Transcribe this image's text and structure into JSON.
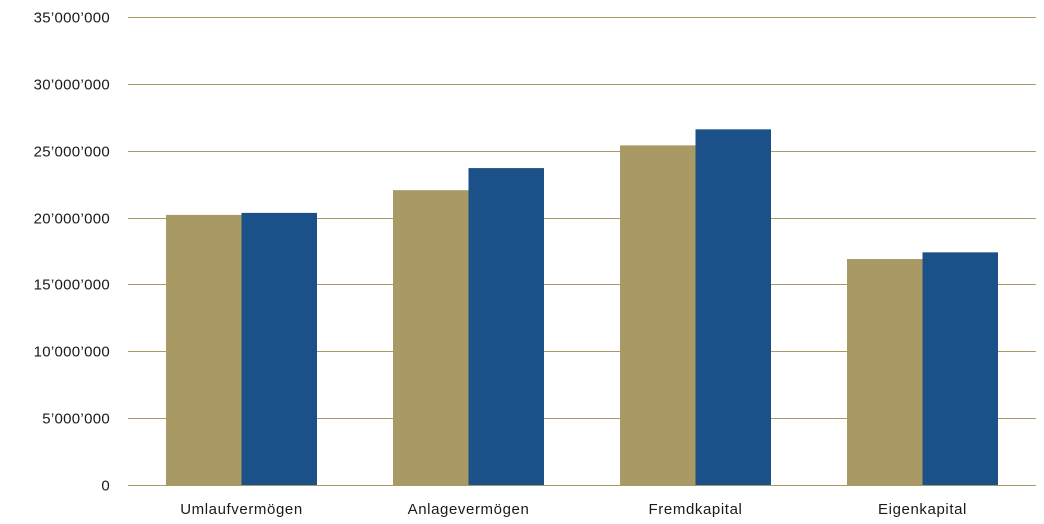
{
  "chart_data": {
    "type": "bar",
    "title": "",
    "xlabel": "",
    "ylabel": "",
    "categories": [
      "Umlaufvermögen",
      "Anlagevermögen",
      "Fremdkapital",
      "Eigenkapital"
    ],
    "series": [
      {
        "color": "#a99a65",
        "values": [
          20200000,
          22050000,
          25400000,
          16900000
        ]
      },
      {
        "color": "#1c5088",
        "values": [
          20350000,
          23700000,
          26600000,
          17400000
        ]
      }
    ],
    "ylim": [
      0,
      35000000
    ],
    "yticks": [
      0,
      5000000,
      10000000,
      15000000,
      20000000,
      25000000,
      30000000,
      35000000
    ],
    "ytick_labels": [
      "0",
      "5’000’000",
      "10’000’000",
      "15’000’000",
      "20’000’000",
      "25’000’000",
      "30’000’000",
      "35’000’000"
    ],
    "grid": true,
    "grid_color": "#a99a65",
    "legend": "none"
  }
}
